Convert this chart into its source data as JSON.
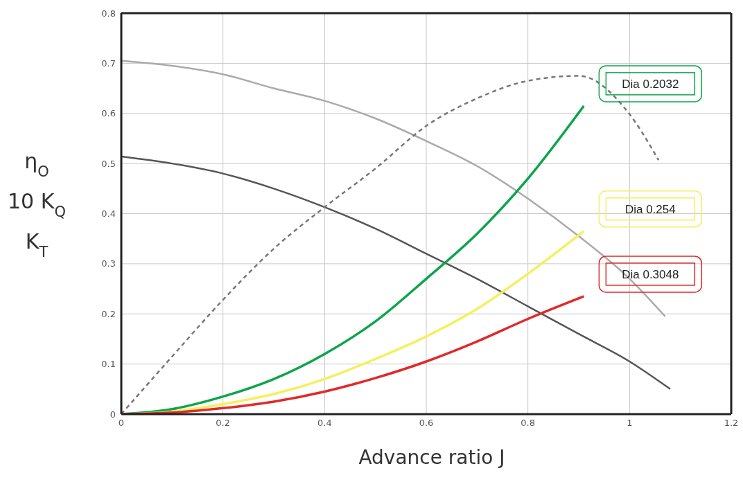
{
  "chart_data": {
    "type": "line",
    "xlabel": "Advance ratio J",
    "ylabel": "η$_{O}$\n10 K$_{Q}$\nK$_{T}$",
    "xlim": [
      0,
      1.2
    ],
    "xticks": [
      0,
      0.2,
      0.4,
      0.6,
      0.8,
      1,
      1.2
    ],
    "ylim": [
      0,
      0.8
    ],
    "yticks": [
      0,
      0.1,
      0.2,
      0.3,
      0.4,
      0.5,
      0.6,
      0.7,
      0.8
    ],
    "grid": true,
    "marker": "none",
    "series": [
      {
        "color": "#aaaaaa",
        "x": [
          0,
          0.1,
          0.2,
          0.3,
          0.4,
          0.5,
          0.6,
          0.7,
          0.8,
          0.9,
          1.0,
          1.07
        ],
        "values": [
          0.705,
          0.695,
          0.678,
          0.65,
          0.625,
          0.59,
          0.545,
          0.495,
          0.43,
          0.355,
          0.27,
          0.195
        ]
      },
      {
        "color": "#555555",
        "x": [
          0,
          0.1,
          0.2,
          0.3,
          0.4,
          0.5,
          0.6,
          0.7,
          0.8,
          0.9,
          1.0,
          1.08
        ],
        "values": [
          0.514,
          0.5,
          0.48,
          0.45,
          0.413,
          0.37,
          0.32,
          0.27,
          0.215,
          0.16,
          0.105,
          0.05
        ]
      },
      {
        "color": "#777777",
        "line_style": "dashed",
        "x": [
          0,
          0.1,
          0.2,
          0.3,
          0.4,
          0.5,
          0.6,
          0.7,
          0.8,
          0.9,
          0.995,
          1.057
        ],
        "values": [
          0,
          0.115,
          0.228,
          0.33,
          0.413,
          0.49,
          0.575,
          0.63,
          0.665,
          0.675,
          0.605,
          0.507
        ]
      },
      {
        "name": "Dia 0.2032",
        "color": "#0ca54a",
        "x": [
          0,
          0.1,
          0.2,
          0.3,
          0.4,
          0.5,
          0.6,
          0.7,
          0.8,
          0.91
        ],
        "values": [
          0,
          0.01,
          0.035,
          0.07,
          0.12,
          0.185,
          0.27,
          0.36,
          0.47,
          0.615
        ]
      },
      {
        "name": "Dia 0.254",
        "color": "#f4f060",
        "x": [
          0,
          0.1,
          0.2,
          0.3,
          0.4,
          0.5,
          0.6,
          0.7,
          0.8,
          0.91
        ],
        "values": [
          0,
          0.005,
          0.02,
          0.04,
          0.07,
          0.11,
          0.155,
          0.21,
          0.28,
          0.365
        ]
      },
      {
        "name": "Dia 0.3048",
        "color": "#e02a2a",
        "x": [
          0,
          0.1,
          0.2,
          0.3,
          0.4,
          0.5,
          0.6,
          0.7,
          0.8,
          0.91
        ],
        "values": [
          0,
          0.003,
          0.012,
          0.025,
          0.045,
          0.072,
          0.105,
          0.145,
          0.19,
          0.235
        ]
      }
    ]
  }
}
